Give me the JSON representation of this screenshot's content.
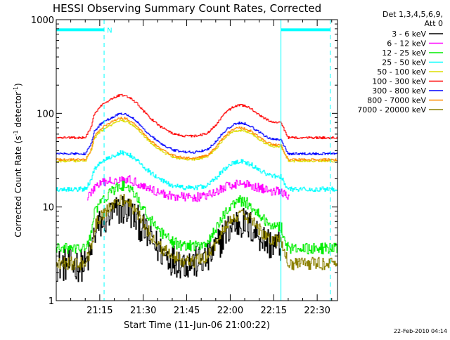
{
  "chart_data": {
    "type": "line",
    "title": "HESSI Observing Summary Count Rates, Corrected",
    "xlabel": "Start Time (11-Jun-06 21:00:22)",
    "ylabel_main": "Corrected Count Rate (s",
    "ylabel_sup1": "-1",
    "ylabel_mid": " detector",
    "ylabel_sup2": "-1",
    "ylabel_end": ")",
    "y_scale": "log",
    "ylim": [
      1,
      1000
    ],
    "y_ticks": [
      {
        "value": 1,
        "label": "1"
      },
      {
        "value": 10,
        "label": "10"
      },
      {
        "value": 100,
        "label": "100"
      },
      {
        "value": 1000,
        "label": "1000"
      }
    ],
    "x_units": "minutes after 21:00:22",
    "xlim": [
      0,
      97
    ],
    "x_ticks": [
      {
        "value": 15,
        "label": "21:15"
      },
      {
        "value": 30,
        "label": "21:30"
      },
      {
        "value": 45,
        "label": "21:45"
      },
      {
        "value": 60,
        "label": "22:00"
      },
      {
        "value": 75,
        "label": "22:15"
      },
      {
        "value": 90,
        "label": "22:30"
      }
    ],
    "legend": {
      "position": "right",
      "header_line1": "Det 1,3,4,5,6,9,",
      "header_line2": "Att 0"
    },
    "night_markers": [
      {
        "x": 0,
        "style": "solid"
      },
      {
        "x": 16.5,
        "style": "dashed"
      },
      {
        "x": 77.5,
        "style": "solid"
      },
      {
        "x": 94.5,
        "style": "dashed"
      }
    ],
    "night_bars": [
      {
        "x_start": 0,
        "x_end": 16.5,
        "y": 780
      },
      {
        "x_start": 77.5,
        "x_end": 94.5,
        "y": 780
      }
    ],
    "flag_label": {
      "text": "N",
      "x": 17.5,
      "y": 780
    },
    "profile": {
      "x": [
        0,
        10,
        12,
        13,
        15,
        17,
        20,
        22,
        24,
        26,
        28,
        30,
        33,
        36,
        40,
        44,
        48,
        52,
        55,
        57,
        59,
        61,
        63,
        65,
        67,
        69,
        71,
        73,
        75,
        77.5,
        79,
        80,
        97
      ],
      "f": [
        0,
        0,
        0.25,
        0.55,
        0.72,
        0.82,
        0.93,
        1.0,
        0.98,
        0.9,
        0.78,
        0.62,
        0.42,
        0.25,
        0.1,
        0.04,
        0.04,
        0.1,
        0.3,
        0.48,
        0.62,
        0.72,
        0.76,
        0.74,
        0.68,
        0.58,
        0.48,
        0.4,
        0.36,
        0.34,
        0.12,
        0,
        0
      ]
    },
    "series": [
      {
        "name": "3 - 6 keV",
        "color": "#000000",
        "base": 2.4,
        "peak": 9.5,
        "noise": 0.18,
        "gaps": [
          {
            "from": 77.5,
            "to": 97
          }
        ]
      },
      {
        "name": "6 - 12 keV",
        "color": "#ff00ff",
        "base": 12.5,
        "peak": 20,
        "noise": 0.05,
        "gaps": [
          {
            "from": 0,
            "to": 10.5
          },
          {
            "from": 80.5,
            "to": 97
          }
        ]
      },
      {
        "name": "12 - 25 keV",
        "color": "#00ee00",
        "base": 3.6,
        "peak": 17,
        "noise": 0.06
      },
      {
        "name": "25 - 50 keV",
        "color": "#00ffff",
        "base": 15.5,
        "peak": 38,
        "noise": 0.025
      },
      {
        "name": "50 - 100 keV",
        "color": "#dddd00",
        "base": 31,
        "peak": 84,
        "noise": 0.012
      },
      {
        "name": "100 - 300 keV",
        "color": "#ff0000",
        "base": 55,
        "peak": 158,
        "noise": 0.012
      },
      {
        "name": "300 - 800 keV",
        "color": "#0000ff",
        "base": 37,
        "peak": 100,
        "noise": 0.012
      },
      {
        "name": "800 - 7000 keV",
        "color": "#ff8c00",
        "base": 32,
        "peak": 90,
        "noise": 0.012
      },
      {
        "name": "7000 - 20000 keV",
        "color": "#8b8000",
        "base": 2.5,
        "peak": 12,
        "noise": 0.07
      }
    ],
    "grid": false
  },
  "footer": {
    "timestamp": "22-Feb-2010 04:14"
  }
}
